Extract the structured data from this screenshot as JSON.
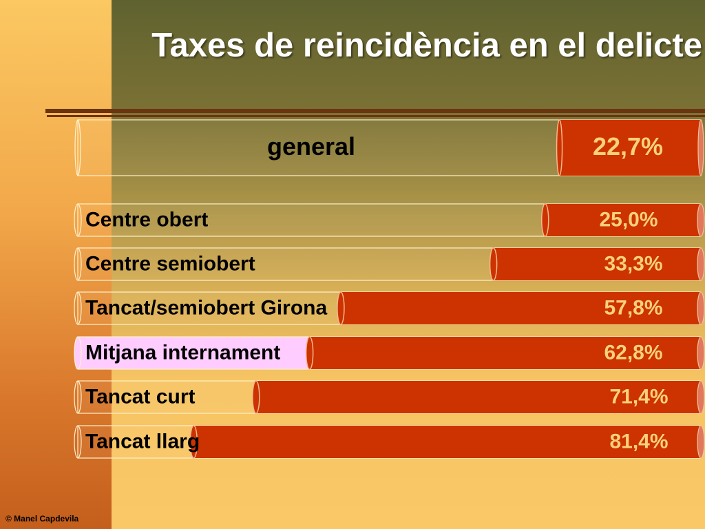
{
  "title": "Taxes de reincidència en el delicte",
  "footer": "© Manel Capdevila",
  "colors": {
    "bar_fill": "#cc3300",
    "bar_end": "#e07a5a",
    "track_fill": "rgba(255,255,255,0.04)",
    "track_border": "#fff1cc",
    "highlight_fill": "#ffccff",
    "label_color": "#000000",
    "value_color": "#fbd17a"
  },
  "chart_data": {
    "type": "bar",
    "orientation": "horizontal",
    "xlim": [
      0,
      100
    ],
    "grid": false,
    "legend": "none",
    "summary": {
      "label": "general",
      "value": 22.7,
      "value_label": "22,7%"
    },
    "categories": [
      "Centre obert",
      "Centre semiobert",
      "Tancat/semiobert Girona",
      "Mitjana internament",
      "Tancat curt",
      "Tancat llarg"
    ],
    "values": [
      25.0,
      33.3,
      57.8,
      62.8,
      71.4,
      81.4
    ],
    "value_labels": [
      "25,0%",
      "33,3%",
      "57,8%",
      "62,8%",
      "71,4%",
      "81,4%"
    ],
    "highlighted_category": "Mitjana internament"
  }
}
